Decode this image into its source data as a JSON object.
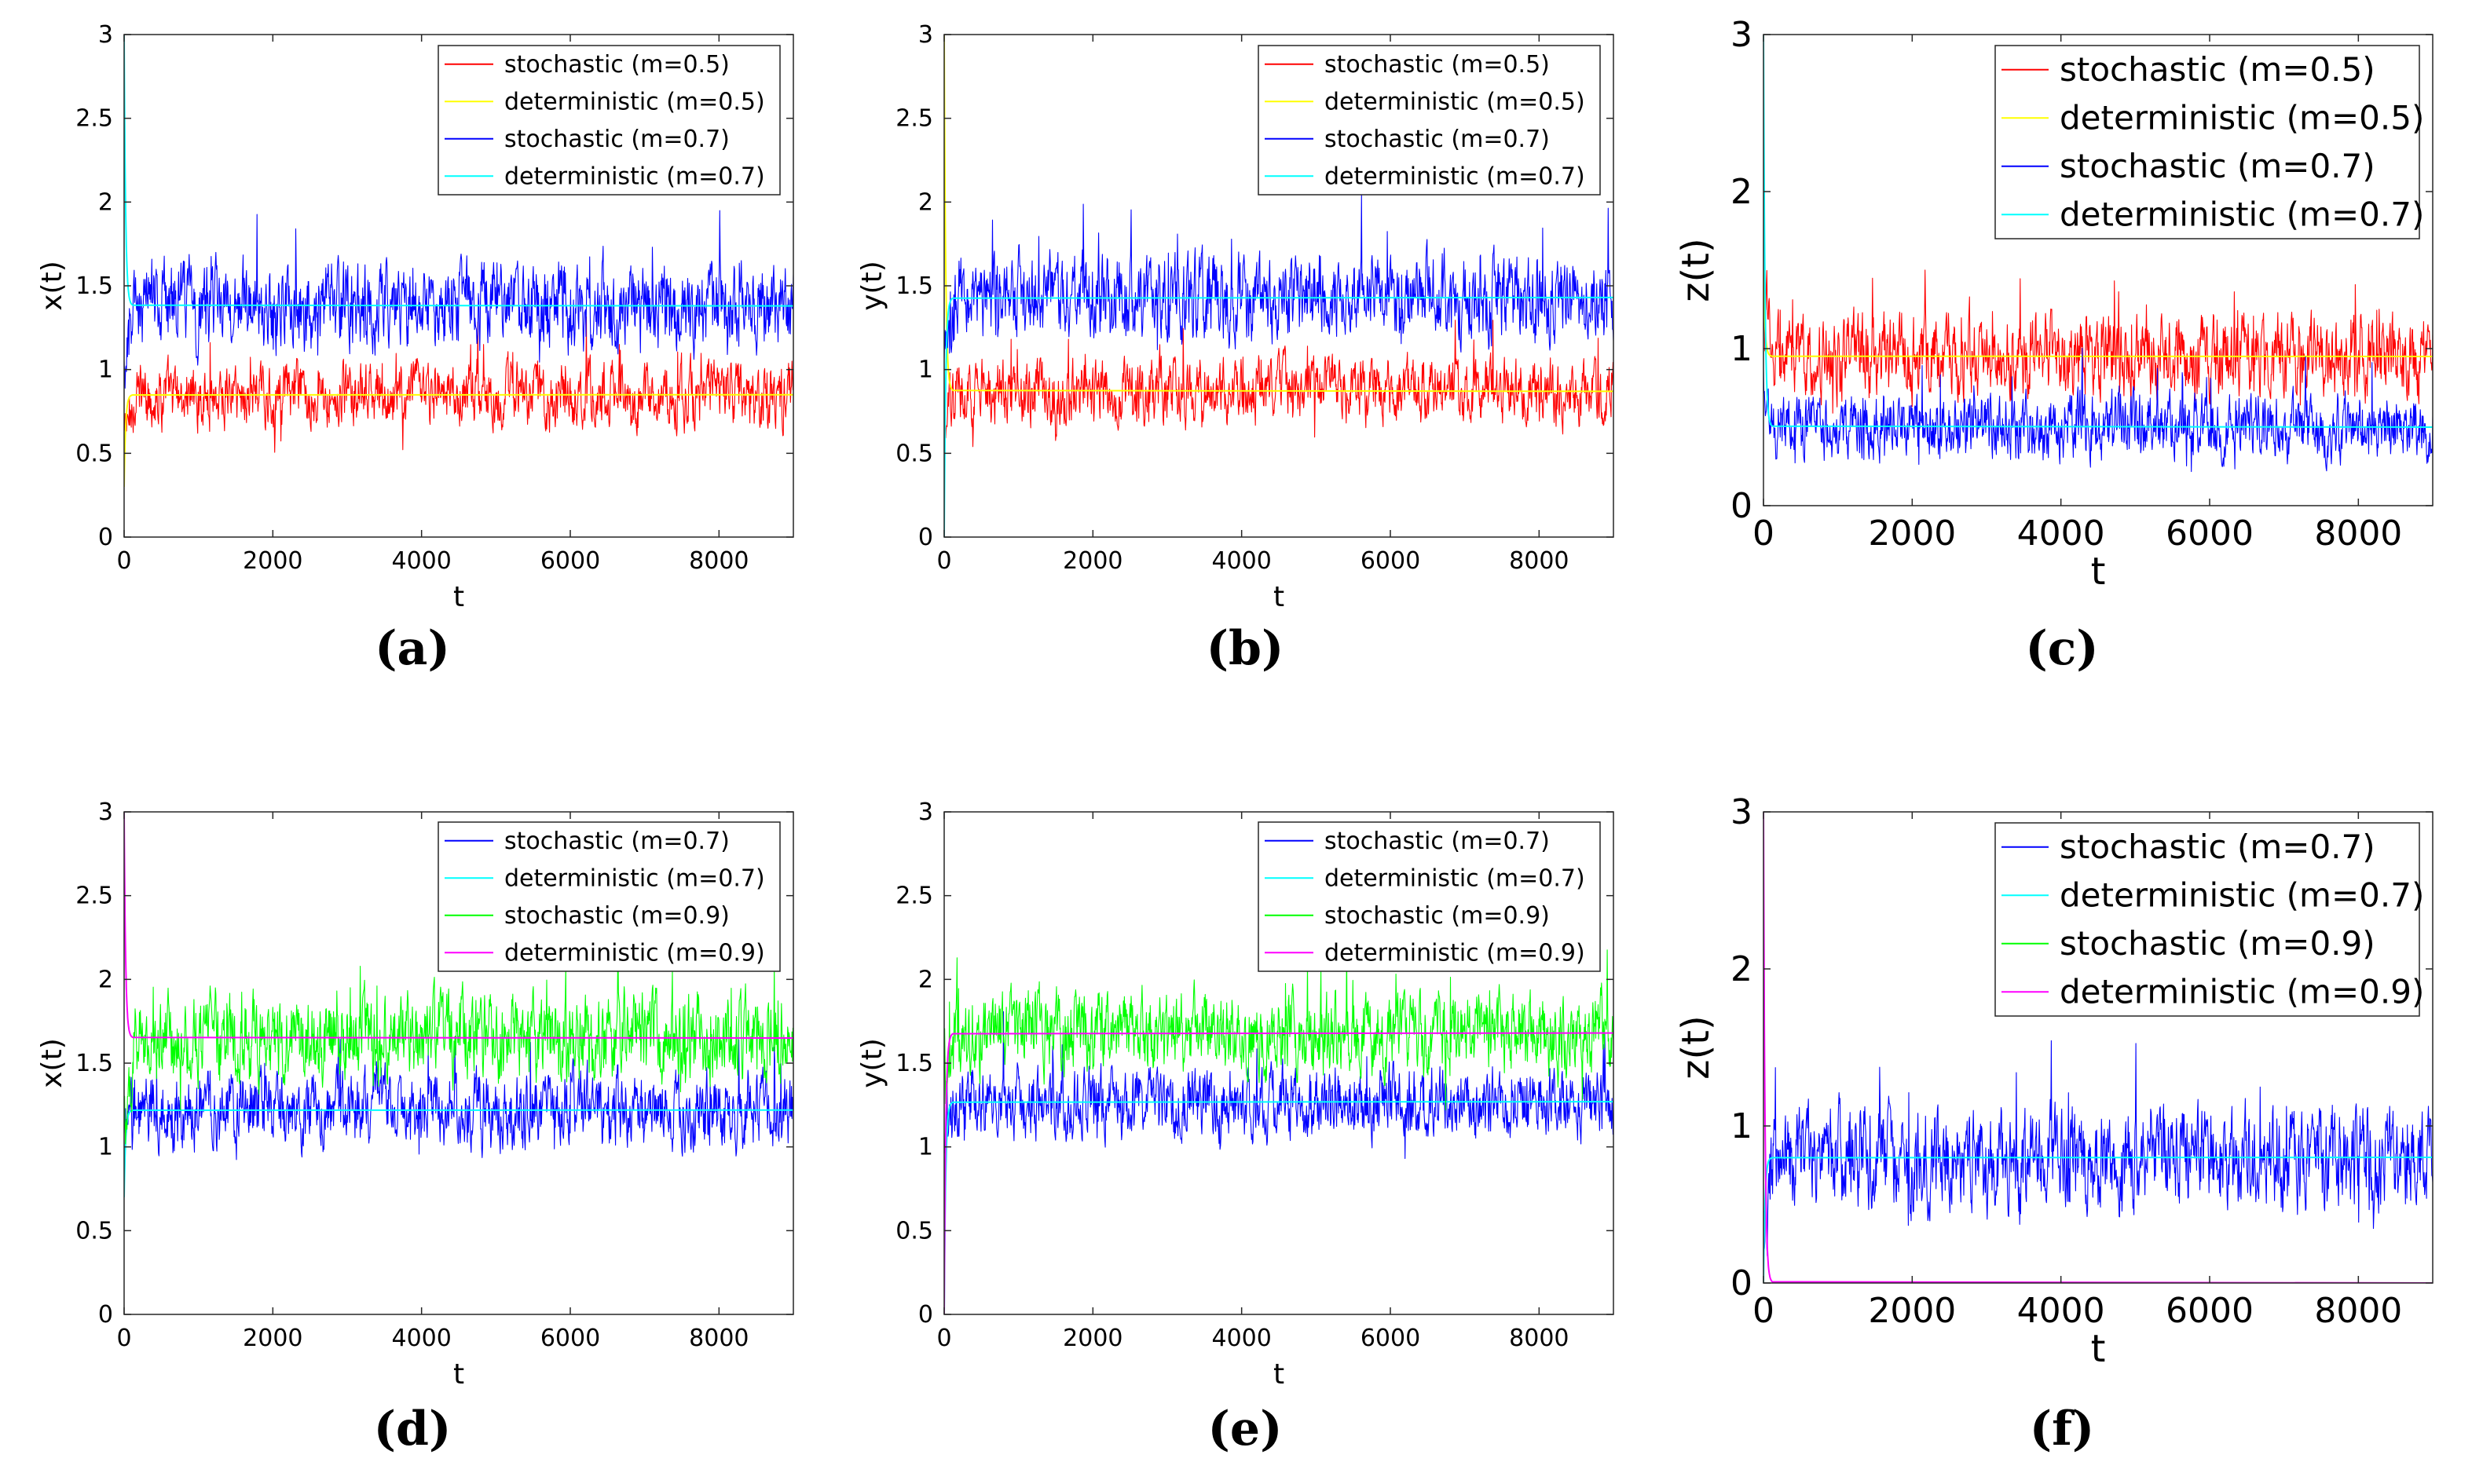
{
  "chart_data": [
    {
      "type": "line",
      "panel_label": "(a)",
      "xlabel": "t",
      "ylabel": "x(t)",
      "xlim": [
        0,
        9000
      ],
      "ylim": [
        0,
        3
      ],
      "xticks": [
        "0",
        "2000",
        "4000",
        "6000",
        "8000"
      ],
      "yticks": [
        "0",
        "0.5",
        "1",
        "1.5",
        "2",
        "2.5",
        "3"
      ],
      "legend_position": "top-right",
      "series": [
        {
          "name": "stochastic (m=0.5)",
          "kind": "stochastic",
          "color": "#ff0000",
          "mean": 0.85,
          "spread": 0.12,
          "start": 0.6
        },
        {
          "name": "deterministic (m=0.5)",
          "kind": "deterministic",
          "color": "#ffff00",
          "equilibrium": 0.85,
          "start": 0.3
        },
        {
          "name": "stochastic (m=0.7)",
          "kind": "stochastic",
          "color": "#0000ff",
          "mean": 1.38,
          "spread": 0.16,
          "start": 1.0
        },
        {
          "name": "deterministic (m=0.7)",
          "kind": "deterministic",
          "color": "#00ffff",
          "equilibrium": 1.38,
          "start": 3.0
        }
      ]
    },
    {
      "type": "line",
      "panel_label": "(b)",
      "xlabel": "t",
      "ylabel": "y(t)",
      "xlim": [
        0,
        9000
      ],
      "ylim": [
        0,
        3
      ],
      "xticks": [
        "0",
        "2000",
        "4000",
        "6000",
        "8000"
      ],
      "yticks": [
        "0",
        "0.5",
        "1",
        "1.5",
        "2",
        "2.5",
        "3"
      ],
      "legend_position": "top-right",
      "series": [
        {
          "name": "stochastic (m=0.5)",
          "kind": "stochastic",
          "color": "#ff0000",
          "mean": 0.87,
          "spread": 0.12,
          "start": 0.6
        },
        {
          "name": "deterministic (m=0.5)",
          "kind": "deterministic",
          "color": "#ffff00",
          "equilibrium": 0.87,
          "start": 3.0
        },
        {
          "name": "stochastic (m=0.7)",
          "kind": "stochastic",
          "color": "#0000ff",
          "mean": 1.43,
          "spread": 0.16,
          "start": 1.0
        },
        {
          "name": "deterministic (m=0.7)",
          "kind": "deterministic",
          "color": "#00ffff",
          "equilibrium": 1.43,
          "start": 0.0
        }
      ]
    },
    {
      "type": "line",
      "panel_label": "(c)",
      "xlabel": "t",
      "ylabel": "z(t)",
      "xlim": [
        0,
        9000
      ],
      "ylim": [
        0,
        3
      ],
      "xticks": [
        "0",
        "2000",
        "4000",
        "6000",
        "8000"
      ],
      "yticks": [
        "0",
        "1",
        "2",
        "3"
      ],
      "legend_position": "top-right",
      "series": [
        {
          "name": "stochastic (m=0.5)",
          "kind": "stochastic",
          "color": "#ff0000",
          "mean": 0.95,
          "spread": 0.16,
          "start": 1.3
        },
        {
          "name": "deterministic (m=0.5)",
          "kind": "deterministic",
          "color": "#ffff00",
          "equilibrium": 0.95,
          "start": 1.5
        },
        {
          "name": "stochastic (m=0.7)",
          "kind": "stochastic",
          "color": "#0000ff",
          "mean": 0.5,
          "spread": 0.13,
          "start": 0.8
        },
        {
          "name": "deterministic (m=0.7)",
          "kind": "deterministic",
          "color": "#00ffff",
          "equilibrium": 0.5,
          "start": 3.0
        }
      ]
    },
    {
      "type": "line",
      "panel_label": "(d)",
      "xlabel": "t",
      "ylabel": "x(t)",
      "xlim": [
        0,
        9000
      ],
      "ylim": [
        0,
        3
      ],
      "xticks": [
        "0",
        "2000",
        "4000",
        "6000",
        "8000"
      ],
      "yticks": [
        "0",
        "0.5",
        "1",
        "1.5",
        "2",
        "2.5",
        "3"
      ],
      "legend_position": "top-right",
      "series": [
        {
          "name": "stochastic (m=0.7)",
          "kind": "stochastic",
          "color": "#0000ff",
          "mean": 1.22,
          "spread": 0.14,
          "start": 1.0
        },
        {
          "name": "deterministic (m=0.7)",
          "kind": "deterministic",
          "color": "#00ffff",
          "equilibrium": 1.22,
          "start": 0.7
        },
        {
          "name": "stochastic (m=0.9)",
          "kind": "stochastic",
          "color": "#00ff00",
          "mean": 1.65,
          "spread": 0.16,
          "start": 1.2
        },
        {
          "name": "deterministic (m=0.9)",
          "kind": "deterministic",
          "color": "#ff00ff",
          "equilibrium": 1.65,
          "start": 3.0
        }
      ]
    },
    {
      "type": "line",
      "panel_label": "(e)",
      "xlabel": "t",
      "ylabel": "y(t)",
      "xlim": [
        0,
        9000
      ],
      "ylim": [
        0,
        3
      ],
      "xticks": [
        "0",
        "2000",
        "4000",
        "6000",
        "8000"
      ],
      "yticks": [
        "0",
        "0.5",
        "1",
        "1.5",
        "2",
        "2.5",
        "3"
      ],
      "legend_position": "top-right",
      "series": [
        {
          "name": "stochastic (m=0.7)",
          "kind": "stochastic",
          "color": "#0000ff",
          "mean": 1.27,
          "spread": 0.13,
          "start": 1.0
        },
        {
          "name": "deterministic (m=0.7)",
          "kind": "deterministic",
          "color": "#00ffff",
          "equilibrium": 1.27,
          "start": 0.0
        },
        {
          "name": "stochastic (m=0.9)",
          "kind": "stochastic",
          "color": "#00ff00",
          "mean": 1.68,
          "spread": 0.15,
          "start": 1.2
        },
        {
          "name": "deterministic (m=0.9)",
          "kind": "deterministic",
          "color": "#ff00ff",
          "equilibrium": 1.68,
          "start": 0.0
        }
      ]
    },
    {
      "type": "line",
      "panel_label": "(f)",
      "xlabel": "t",
      "ylabel": "z(t)",
      "xlim": [
        0,
        9000
      ],
      "ylim": [
        0,
        3
      ],
      "xticks": [
        "0",
        "2000",
        "4000",
        "6000",
        "8000"
      ],
      "yticks": [
        "0",
        "1",
        "2",
        "3"
      ],
      "legend_position": "top-right",
      "series": [
        {
          "name": "stochastic (m=0.7)",
          "kind": "stochastic",
          "color": "#0000ff",
          "mean": 0.8,
          "spread": 0.2,
          "start": 0.3
        },
        {
          "name": "deterministic (m=0.7)",
          "kind": "deterministic",
          "color": "#00ffff",
          "equilibrium": 0.8,
          "start": 0.0
        },
        {
          "name": "stochastic (m=0.9)",
          "kind": "stochastic",
          "color": "#00ff00",
          "mean": 0.0,
          "spread": 0.0,
          "start": 0.0
        },
        {
          "name": "deterministic (m=0.9)",
          "kind": "deterministic",
          "color": "#ff00ff",
          "equilibrium": 0.0,
          "start": 3.0
        }
      ]
    }
  ]
}
